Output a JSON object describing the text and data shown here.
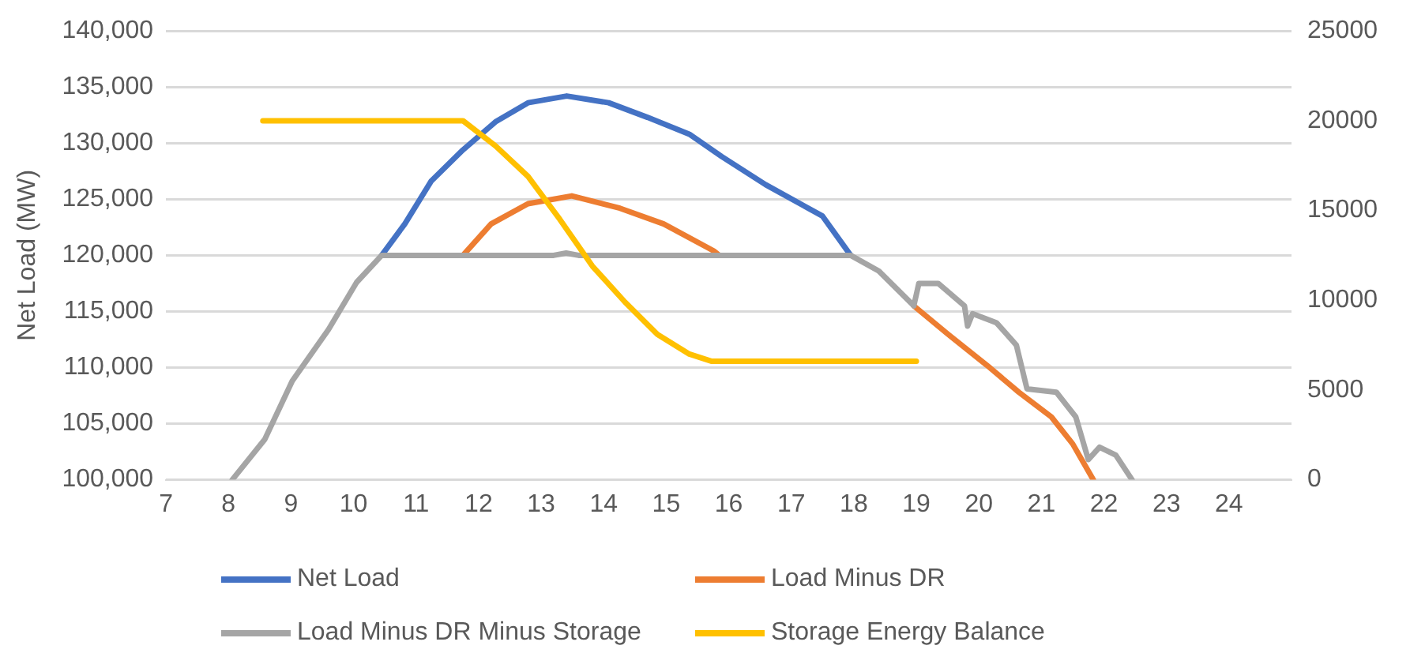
{
  "chart_data": {
    "type": "line",
    "ylabel": "Net Load (MW)",
    "xlim": [
      7,
      25
    ],
    "xticks": [
      7,
      8,
      9,
      10,
      11,
      12,
      13,
      14,
      15,
      16,
      17,
      18,
      19,
      20,
      21,
      22,
      23,
      24
    ],
    "ylim": [
      100000,
      140000
    ],
    "yticks": [
      {
        "value": 100000,
        "label": "100,000"
      },
      {
        "value": 105000,
        "label": "105,000"
      },
      {
        "value": 110000,
        "label": "110,000"
      },
      {
        "value": 115000,
        "label": "115,000"
      },
      {
        "value": 120000,
        "label": "120,000"
      },
      {
        "value": 125000,
        "label": "125,000"
      },
      {
        "value": 130000,
        "label": "130,000"
      },
      {
        "value": 135000,
        "label": "135,000"
      },
      {
        "value": 140000,
        "label": "140,000"
      }
    ],
    "y2lim": [
      0,
      25000
    ],
    "y2ticks": [
      0,
      5000,
      10000,
      15000,
      20000,
      25000
    ],
    "grid": "y",
    "legend": "bottom",
    "marker": "none",
    "line_style": "solid",
    "series": [
      {
        "name": "Net Load",
        "color": "#4472c4",
        "x": [
          10.45,
          10.82,
          11.24,
          11.75,
          12.27,
          12.79,
          13.41,
          14.08,
          14.7,
          15.37,
          15.89,
          16.59,
          17.5,
          17.95
        ],
        "values": [
          120000,
          122800,
          126600,
          129400,
          131900,
          133600,
          134200,
          133600,
          132300,
          130800,
          128800,
          126300,
          123500,
          120000
        ]
      },
      {
        "name": "Load Minus DR",
        "color": "#ed7d31",
        "x": [
          11.75,
          12.2,
          12.79,
          13.49,
          14.26,
          14.96,
          15.76,
          15.85,
          null,
          18.96,
          19.5,
          20.13,
          20.64,
          21.16,
          21.5,
          21.83
        ],
        "values": [
          120000,
          122800,
          124600,
          125300,
          124200,
          122800,
          120400,
          120000,
          null,
          115500,
          113000,
          110200,
          107800,
          105600,
          103200,
          100000
        ]
      },
      {
        "name": "Load Minus DR Minus Storage",
        "color": "#a5a5a5",
        "x": [
          8.06,
          8.58,
          9.02,
          9.6,
          10.05,
          10.45,
          13.2,
          13.4,
          13.6,
          17.95,
          18.4,
          18.96,
          19.04,
          19.35,
          19.77,
          19.82,
          19.9,
          20.28,
          20.6,
          20.77,
          21.24,
          21.55,
          21.75,
          21.93,
          22.19,
          22.45
        ],
        "values": [
          100000,
          103600,
          108800,
          113400,
          117600,
          120000,
          120000,
          120200,
          120000,
          120000,
          118600,
          115500,
          117500,
          117500,
          115500,
          113700,
          114800,
          114000,
          112000,
          108100,
          107800,
          105600,
          101800,
          102900,
          102200,
          100000
        ]
      },
      {
        "name": "Storage Energy Balance",
        "color": "#ffc000",
        "axis": "y2",
        "x": [
          8.55,
          11.75,
          12.27,
          12.79,
          13.3,
          13.82,
          14.34,
          14.86,
          15.37,
          15.73,
          19.0
        ],
        "values": [
          20000,
          20000,
          18600,
          16900,
          14500,
          11900,
          9900,
          8100,
          7000,
          6600,
          6600
        ]
      }
    ]
  }
}
